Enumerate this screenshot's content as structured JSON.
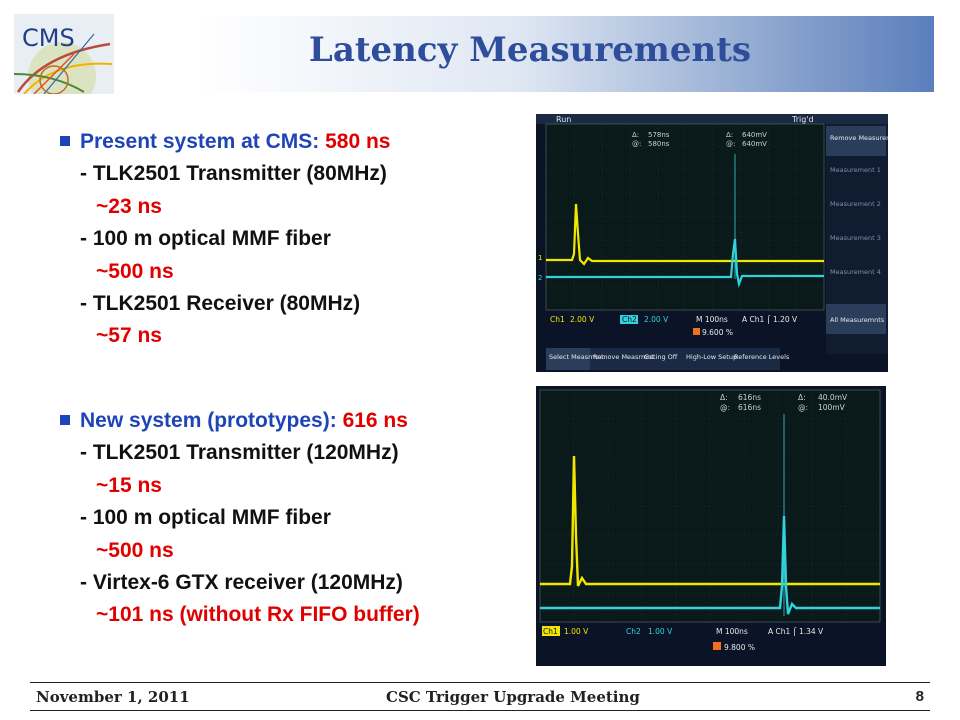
{
  "slide": {
    "title": "Latency Measurements",
    "logo_text": "CMS"
  },
  "section_present": {
    "heading_prefix": "Present system at CMS:",
    "heading_value": "580 ns",
    "items": [
      {
        "label": "- TLK2501 Transmitter (80MHz)",
        "value": "~23 ns"
      },
      {
        "label": "- 100 m optical MMF fiber",
        "value": "~500 ns"
      },
      {
        "label": "- TLK2501 Receiver (80MHz)",
        "value": "~57 ns"
      }
    ]
  },
  "section_new": {
    "heading_prefix": "New system (prototypes):",
    "heading_value": "616 ns",
    "items": [
      {
        "label": "- TLK2501 Transmitter (120MHz)",
        "value": "~15 ns"
      },
      {
        "label": "- 100 m optical MMF fiber",
        "value": "~500 ns"
      },
      {
        "label": "- Virtex-6 GTX receiver (120MHz)",
        "value": "~101 ns (without Rx FIFO buffer)"
      }
    ]
  },
  "scope1": {
    "run": "Run",
    "trig": "Trig'd",
    "delta_t": "578ns",
    "at_t": "580ns",
    "delta_v": "640mV",
    "at_v": "640mV",
    "ch1_scale": "2.00 V",
    "ch2_scale": "2.00 V",
    "timebase": "M 100ns",
    "trigger": "A  Ch1  ⌠  1.20 V",
    "trigger_pos": "9.600 %",
    "side_menu": [
      "Remove Measurement",
      "Measurement 1",
      "Measurement 2",
      "Measurement 3",
      "Measurement 4",
      "All Measuremnts"
    ],
    "bottom_menu": [
      "Select Measrmnt",
      "Remove Measrmnt",
      "Gating Off",
      "High-Low Setup",
      "Reference Levels"
    ]
  },
  "scope2": {
    "delta_t": "616ns",
    "at_t": "616ns",
    "delta_v": "40.0mV",
    "at_v": "100mV",
    "ch1_scale": "1.00 V",
    "ch2_scale": "1.00 V",
    "timebase": "M 100ns",
    "trigger": "A  Ch1  ⌠  1.34 V",
    "trigger_pos": "9.800 %"
  },
  "footer": {
    "date": "November 1, 2011",
    "meeting": "CSC Trigger Upgrade Meeting",
    "page": "8"
  }
}
